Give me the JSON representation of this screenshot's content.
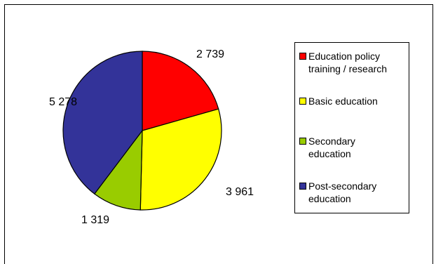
{
  "chart_data": {
    "type": "pie",
    "categories": [
      "Education policy training / research",
      "Basic education",
      "Secondary education",
      "Post-secondary education"
    ],
    "values": [
      2739,
      3961,
      1319,
      5278
    ],
    "value_labels": [
      "2 739",
      "3 961",
      "1 319",
      "5 278"
    ],
    "colors": [
      "#ff0000",
      "#ffff00",
      "#99cc00",
      "#333399"
    ],
    "start_angle_deg": 0,
    "direction": "clockwise",
    "legend_position": "right"
  }
}
